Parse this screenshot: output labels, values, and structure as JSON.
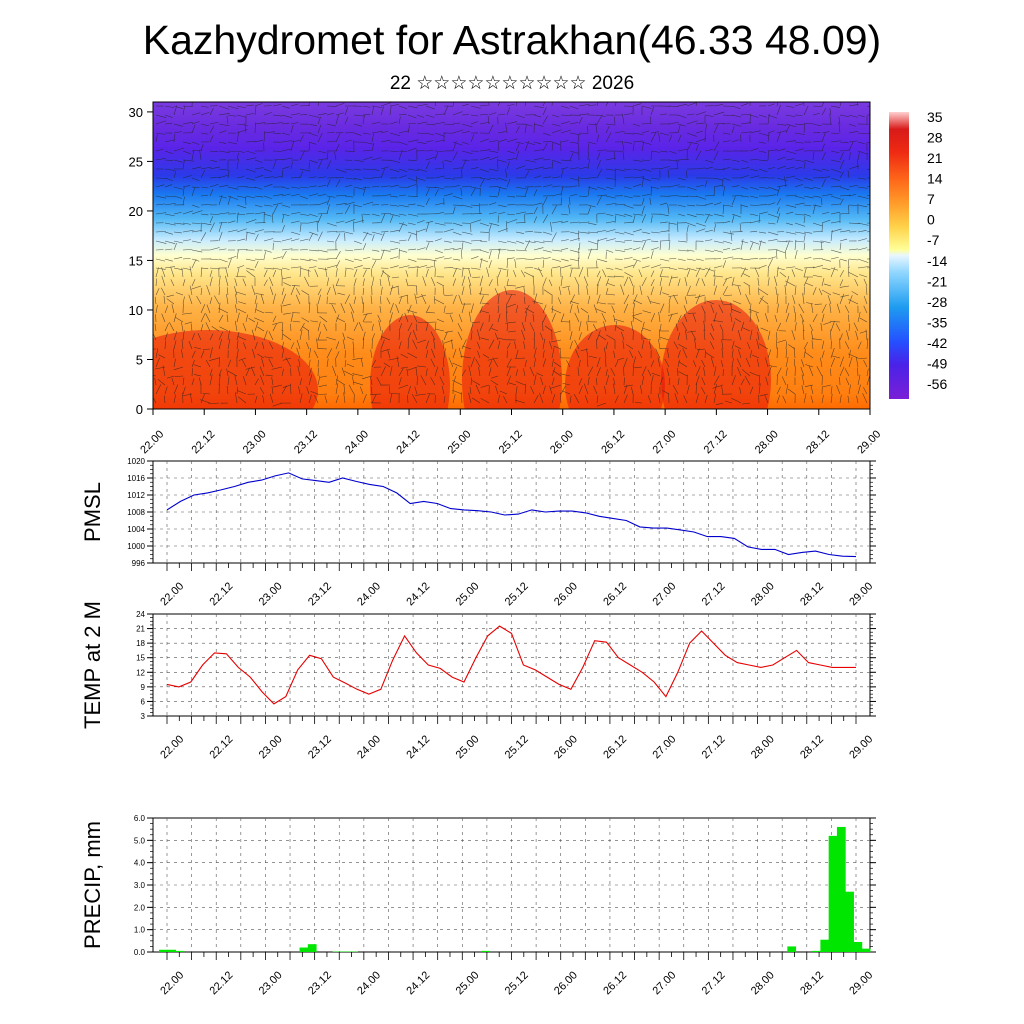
{
  "header": {
    "title": "Kazhydromet for Astrakhan(46.33 48.09)",
    "subtitle": "22 ☆☆☆☆☆☆☆☆☆☆ 2026"
  },
  "chart_data": [
    {
      "type": "heatmap",
      "name": "temperature-wind-profile",
      "x_ticks": [
        "22.00",
        "22.12",
        "23.00",
        "23.12",
        "24.00",
        "24.12",
        "25.00",
        "25.12",
        "26.00",
        "26.12",
        "27.00",
        "27.12",
        "28.00",
        "28.12",
        "29.00"
      ],
      "y_ticks": [
        "0",
        "5",
        "10",
        "15",
        "20",
        "25",
        "30"
      ],
      "ylim": [
        0,
        31
      ],
      "colorbar_labels": [
        "35",
        "28",
        "21",
        "14",
        "7",
        "0",
        "-7",
        "-14",
        "-21",
        "-28",
        "-35",
        "-42",
        "-49",
        "-56"
      ],
      "colors": {
        "cold": "#7a1fd6",
        "cool": "#2e6bff",
        "mild": "#ffffd0",
        "warm": "#ff8c1a",
        "hot": "#e0120a"
      }
    },
    {
      "type": "line",
      "name": "pmsl",
      "ylabel": "PMSL",
      "ylim": [
        996,
        1020
      ],
      "y_ticks": [
        "996",
        "1000",
        "1004",
        "1008",
        "1012",
        "1016",
        "1020"
      ],
      "x_ticks": [
        "22.00",
        "22.12",
        "23.00",
        "23.12",
        "24.00",
        "24.12",
        "25.00",
        "25.12",
        "26.00",
        "26.12",
        "27.00",
        "27.12",
        "28.00",
        "28.12",
        "29.00"
      ],
      "color": "#0000cc",
      "values": [
        1008.5,
        1010.5,
        1012,
        1012.5,
        1013.2,
        1014,
        1015,
        1015.5,
        1016.5,
        1017.2,
        1015.8,
        1015.4,
        1015,
        1016,
        1015.2,
        1014.5,
        1014,
        1012.5,
        1010,
        1010.5,
        1010,
        1008.8,
        1008.5,
        1008.3,
        1008,
        1007.3,
        1007.5,
        1008.5,
        1008,
        1008.2,
        1008.2,
        1007.8,
        1007,
        1006.5,
        1006,
        1004.5,
        1004.2,
        1004.2,
        1003.8,
        1003.3,
        1002.2,
        1002.2,
        1001.8,
        999.8,
        999.2,
        999.2,
        998,
        998.5,
        998.8,
        998,
        997.6,
        997.5
      ]
    },
    {
      "type": "line",
      "name": "temp-2m",
      "ylabel": "TEMP at 2 M",
      "ylim": [
        3,
        24
      ],
      "y_ticks": [
        "3",
        "6",
        "9",
        "12",
        "15",
        "18",
        "21",
        "24"
      ],
      "x_ticks": [
        "22.00",
        "22.12",
        "23.00",
        "23.12",
        "24.00",
        "24.12",
        "25.00",
        "25.12",
        "26.00",
        "26.12",
        "27.00",
        "27.12",
        "28.00",
        "28.12",
        "29.00"
      ],
      "color": "#e60000",
      "values": [
        9.5,
        9,
        10,
        13.5,
        16,
        15.8,
        13,
        11,
        8,
        5.5,
        7,
        12.5,
        15.5,
        14.8,
        11,
        9.8,
        8.5,
        7.5,
        8.5,
        14.5,
        19.5,
        16,
        13.5,
        12.8,
        11,
        10,
        15,
        19.5,
        21.5,
        20,
        13.5,
        12.5,
        11,
        9.5,
        8.5,
        13,
        18.5,
        18.2,
        15,
        13.5,
        12,
        10,
        7,
        12,
        18,
        20.5,
        18,
        15.5,
        14,
        13.5,
        13,
        13.5,
        15,
        16.5,
        14,
        13.5,
        13,
        13,
        13
      ]
    },
    {
      "type": "bar",
      "name": "precip",
      "ylabel": "PRECIP, mm",
      "ylim": [
        0,
        6
      ],
      "y_ticks": [
        "0.0",
        "1.0",
        "2.0",
        "3.0",
        "4.0",
        "5.0",
        "6.0"
      ],
      "x_ticks": [
        "22.00",
        "22.12",
        "23.00",
        "23.12",
        "24.00",
        "24.12",
        "25.00",
        "25.12",
        "26.00",
        "26.12",
        "27.00",
        "27.12",
        "28.00",
        "28.12",
        "29.00"
      ],
      "color": "#00e600",
      "values": [
        0.1,
        0.1,
        0.05,
        0,
        0,
        0,
        0,
        0,
        0,
        0,
        0,
        0,
        0,
        0,
        0,
        0,
        0,
        0.2,
        0.35,
        0,
        0,
        0.02,
        0.02,
        0.02,
        0,
        0,
        0,
        0,
        0,
        0,
        0,
        0,
        0,
        0,
        0,
        0,
        0,
        0,
        0,
        0.05,
        0,
        0,
        0,
        0,
        0,
        0,
        0,
        0,
        0,
        0,
        0,
        0,
        0,
        0,
        0,
        0,
        0,
        0,
        0,
        0,
        0,
        0,
        0,
        0,
        0,
        0,
        0,
        0,
        0,
        0,
        0,
        0,
        0,
        0,
        0,
        0,
        0.25,
        0,
        0,
        0.05,
        0.55,
        5.2,
        5.6,
        2.7,
        0.45,
        0.15
      ]
    }
  ]
}
